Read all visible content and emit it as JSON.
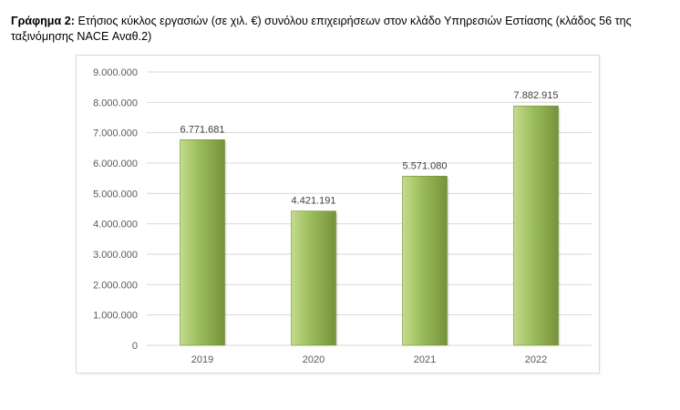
{
  "caption": {
    "label": "Γράφημα 2:",
    "text": " Ετήσιος κύκλος εργασιών (σε χιλ. €) συνόλου επιχειρήσεων στον κλάδο Υπηρεσιών Εστίασης (κλάδος 56 της ταξινόμησης NACE Αναθ.2)"
  },
  "chart_data": {
    "type": "bar",
    "categories": [
      "2019",
      "2020",
      "2021",
      "2022"
    ],
    "values": [
      6771681,
      4421191,
      5571080,
      7882915
    ],
    "data_labels": [
      "6.771.681",
      "4.421.191",
      "5.571.080",
      "7.882.915"
    ],
    "y_ticks": [
      0,
      1000000,
      2000000,
      3000000,
      4000000,
      5000000,
      6000000,
      7000000,
      8000000,
      9000000
    ],
    "y_tick_labels": [
      "0",
      "1.000.000",
      "2.000.000",
      "3.000.000",
      "4.000.000",
      "5.000.000",
      "6.000.000",
      "7.000.000",
      "8.000.000",
      "9.000.000"
    ],
    "ylim": [
      0,
      9000000
    ],
    "grid": true,
    "legend": "none",
    "title": "",
    "xlabel": "",
    "ylabel": "",
    "colors": {
      "bar_light": "#c3dc8c",
      "bar_mid": "#9bbb59",
      "bar_dark": "#76923c",
      "grid": "#d9d9d9",
      "text": "#595959"
    }
  }
}
